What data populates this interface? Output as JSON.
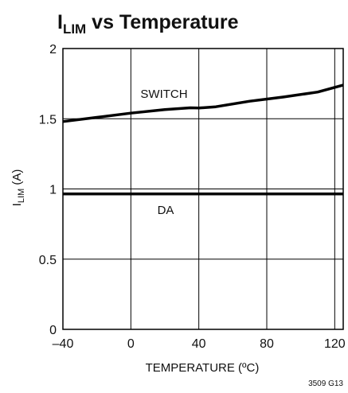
{
  "chart_data": {
    "type": "line",
    "title": {
      "main": "I",
      "sub": "LIM",
      "rest": " vs Temperature"
    },
    "xlabel": "TEMPERATURE (ºC)",
    "ylabel": {
      "main": "I",
      "sub": "LIM",
      "rest": " (A)"
    },
    "xlim": [
      -40,
      125
    ],
    "ylim": [
      0,
      2
    ],
    "x_ticks": [
      -40,
      0,
      40,
      80,
      120
    ],
    "x_tick_labels": [
      "–40",
      "0",
      "40",
      "80",
      "120"
    ],
    "y_ticks": [
      0,
      0.5,
      1,
      1.5,
      2
    ],
    "y_tick_labels": [
      "0",
      "0.5",
      "1",
      "1.5",
      "2"
    ],
    "grid": true,
    "series": [
      {
        "name": "SWITCH",
        "x": [
          -40,
          -20,
          0,
          20,
          35,
          40,
          50,
          70,
          90,
          110,
          125
        ],
        "y": [
          1.48,
          1.51,
          1.54,
          1.565,
          1.578,
          1.576,
          1.585,
          1.625,
          1.655,
          1.69,
          1.74
        ]
      },
      {
        "name": "DA",
        "x": [
          -40,
          125
        ],
        "y": [
          0.965,
          0.965
        ]
      }
    ],
    "figure_ref": "3509 G13"
  }
}
